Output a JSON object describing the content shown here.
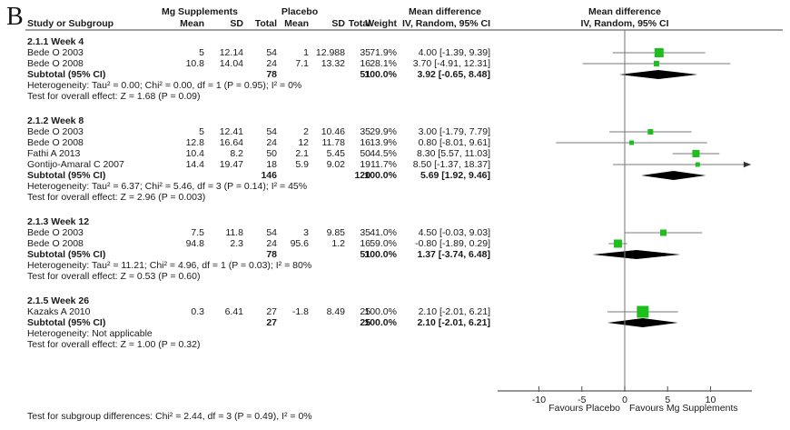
{
  "panel_label": "B",
  "colors": {
    "square": "#1cbf1c",
    "diamond": "#000000",
    "ci_line": "#7a7a7a",
    "rule": "#808080",
    "axis": "#595959",
    "text": "#1a1a1a"
  },
  "header": {
    "group1": "Mg Supplements",
    "group2": "Placebo",
    "effect_col_title": "Mean difference",
    "effect_col_subtitle": "IV, Random, 95% CI",
    "plot_col_title": "Mean difference",
    "plot_col_subtitle": "IV, Random, 95% CI",
    "columns": {
      "study": "Study or Subgroup",
      "mean": "Mean",
      "sd": "SD",
      "total": "Total",
      "weight": "Weight"
    }
  },
  "subgroups": [
    {
      "title": "2.1.1 Week 4",
      "studies": [
        {
          "name": "Bede O 2003",
          "mean1": "5",
          "sd1": "12.14",
          "total1": "54",
          "mean2": "1",
          "sd2": "12.988",
          "total2": "35",
          "weight": "71.9%",
          "ci_text": "4.00 [-1.39, 9.39]",
          "est": 4.0,
          "lo": -1.39,
          "hi": 9.39,
          "weight_pct": 71.9
        },
        {
          "name": "Bede O 2008",
          "mean1": "10.8",
          "sd1": "14.04",
          "total1": "24",
          "mean2": "7.1",
          "sd2": "13.32",
          "total2": "16",
          "weight": "28.1%",
          "ci_text": "3.70 [-4.91, 12.31]",
          "est": 3.7,
          "lo": -4.91,
          "hi": 12.31,
          "weight_pct": 28.1
        }
      ],
      "subtotal": {
        "label": "Subtotal (95% CI)",
        "total1": "78",
        "total2": "51",
        "weight": "100.0%",
        "ci_text": "3.92 [-0.65, 8.48]",
        "est": 3.92,
        "lo": -0.65,
        "hi": 8.48
      },
      "heterogeneity": "Heterogeneity: Tau² = 0.00; Chi² = 0.00, df = 1 (P = 0.95); I² = 0%",
      "overall_test": "Test for overall effect: Z = 1.68 (P = 0.09)"
    },
    {
      "title": "2.1.2 Week 8",
      "studies": [
        {
          "name": "Bede O 2003",
          "mean1": "5",
          "sd1": "12.41",
          "total1": "54",
          "mean2": "2",
          "sd2": "10.46",
          "total2": "35",
          "weight": "29.9%",
          "ci_text": "3.00 [-1.79, 7.79]",
          "est": 3.0,
          "lo": -1.79,
          "hi": 7.79,
          "weight_pct": 29.9
        },
        {
          "name": "Bede O 2008",
          "mean1": "12.8",
          "sd1": "16.64",
          "total1": "24",
          "mean2": "12",
          "sd2": "11.78",
          "total2": "16",
          "weight": "13.9%",
          "ci_text": "0.80 [-8.01, 9.61]",
          "est": 0.8,
          "lo": -8.01,
          "hi": 9.61,
          "weight_pct": 13.9
        },
        {
          "name": "Fathi A 2013",
          "mean1": "10.4",
          "sd1": "8.2",
          "total1": "50",
          "mean2": "2.1",
          "sd2": "5.45",
          "total2": "50",
          "weight": "44.5%",
          "ci_text": "8.30 [5.57, 11.03]",
          "est": 8.3,
          "lo": 5.57,
          "hi": 11.03,
          "weight_pct": 44.5
        },
        {
          "name": "Gontijo-Amaral C 2007",
          "mean1": "14.4",
          "sd1": "19.47",
          "total1": "18",
          "mean2": "5.9",
          "sd2": "9.02",
          "total2": "19",
          "weight": "11.7%",
          "ci_text": "8.50 [-1.37, 18.37]",
          "est": 8.5,
          "lo": -1.37,
          "hi": 18.37,
          "weight_pct": 11.7
        }
      ],
      "subtotal": {
        "label": "Subtotal (95% CI)",
        "total1": "146",
        "total2": "120",
        "weight": "100.0%",
        "ci_text": "5.69 [1.92, 9.46]",
        "est": 5.69,
        "lo": 1.92,
        "hi": 9.46
      },
      "heterogeneity": "Heterogeneity: Tau² = 6.37; Chi² = 5.46, df = 3 (P = 0.14); I² = 45%",
      "overall_test": "Test for overall effect: Z = 2.96 (P = 0.003)"
    },
    {
      "title": "2.1.3 Week 12",
      "studies": [
        {
          "name": "Bede O 2003",
          "mean1": "7.5",
          "sd1": "11.8",
          "total1": "54",
          "mean2": "3",
          "sd2": "9.85",
          "total2": "35",
          "weight": "41.0%",
          "ci_text": "4.50 [-0.03, 9.03]",
          "est": 4.5,
          "lo": -0.03,
          "hi": 9.03,
          "weight_pct": 41.0
        },
        {
          "name": "Bede O 2008",
          "mean1": "94.8",
          "sd1": "2.3",
          "total1": "24",
          "mean2": "95.6",
          "sd2": "1.2",
          "total2": "16",
          "weight": "59.0%",
          "ci_text": "-0.80 [-1.89, 0.29]",
          "est": -0.8,
          "lo": -1.89,
          "hi": 0.29,
          "weight_pct": 59.0
        }
      ],
      "subtotal": {
        "label": "Subtotal (95% CI)",
        "total1": "78",
        "total2": "51",
        "weight": "100.0%",
        "ci_text": "1.37 [-3.74, 6.48]",
        "est": 1.37,
        "lo": -3.74,
        "hi": 6.48
      },
      "heterogeneity": "Heterogeneity: Tau² = 11.21; Chi² = 4.96, df = 1 (P = 0.03); I² = 80%",
      "overall_test": "Test for overall effect: Z = 0.53 (P = 0.60)"
    },
    {
      "title": "2.1.5 Week 26",
      "studies": [
        {
          "name": "Kazaks A 2010",
          "mean1": "0.3",
          "sd1": "6.41",
          "total1": "27",
          "mean2": "-1.8",
          "sd2": "8.49",
          "total2": "25",
          "weight": "100.0%",
          "ci_text": "2.10 [-2.01, 6.21]",
          "est": 2.1,
          "lo": -2.01,
          "hi": 6.21,
          "weight_pct": 100.0
        }
      ],
      "subtotal": {
        "label": "Subtotal (95% CI)",
        "total1": "27",
        "total2": "25",
        "weight": "100.0%",
        "ci_text": "2.10 [-2.01, 6.21]",
        "est": 2.1,
        "lo": -2.01,
        "hi": 6.21
      },
      "heterogeneity": "Heterogeneity: Not applicable",
      "overall_test": "Test for overall effect: Z = 1.00 (P = 0.32)"
    }
  ],
  "axis": {
    "ticks": [
      -10,
      -5,
      0,
      5,
      10
    ],
    "min": -14.7,
    "max": 14.7,
    "favours_left": "Favours Placebo",
    "favours_right": "Favours Mg Supplements"
  },
  "footer": "Test for subgroup differences: Chi² = 2.44, df = 3 (P = 0.49), I² = 0%",
  "chart_data": {
    "type": "forest",
    "effect_measure": "Mean difference, IV, Random, 95% CI",
    "axis_ticks": [
      -10,
      -5,
      0,
      5,
      10
    ],
    "axis_range": [
      -14.7,
      14.7
    ],
    "xlabel_left": "Favours Placebo",
    "xlabel_right": "Favours Mg Supplements",
    "subgroups": [
      {
        "name": "2.1.1 Week 4",
        "studies": [
          {
            "study": "Bede O 2003",
            "est": 4.0,
            "ci": [
              -1.39,
              9.39
            ],
            "weight_pct": 71.9
          },
          {
            "study": "Bede O 2008",
            "est": 3.7,
            "ci": [
              -4.91,
              12.31
            ],
            "weight_pct": 28.1
          }
        ],
        "subtotal": {
          "est": 3.92,
          "ci": [
            -0.65,
            8.48
          ]
        }
      },
      {
        "name": "2.1.2 Week 8",
        "studies": [
          {
            "study": "Bede O 2003",
            "est": 3.0,
            "ci": [
              -1.79,
              7.79
            ],
            "weight_pct": 29.9
          },
          {
            "study": "Bede O 2008",
            "est": 0.8,
            "ci": [
              -8.01,
              9.61
            ],
            "weight_pct": 13.9
          },
          {
            "study": "Fathi A 2013",
            "est": 8.3,
            "ci": [
              5.57,
              11.03
            ],
            "weight_pct": 44.5
          },
          {
            "study": "Gontijo-Amaral C 2007",
            "est": 8.5,
            "ci": [
              -1.37,
              18.37
            ],
            "weight_pct": 11.7
          }
        ],
        "subtotal": {
          "est": 5.69,
          "ci": [
            1.92,
            9.46
          ]
        }
      },
      {
        "name": "2.1.3 Week 12",
        "studies": [
          {
            "study": "Bede O 2003",
            "est": 4.5,
            "ci": [
              -0.03,
              9.03
            ],
            "weight_pct": 41.0
          },
          {
            "study": "Bede O 2008",
            "est": -0.8,
            "ci": [
              -1.89,
              0.29
            ],
            "weight_pct": 59.0
          }
        ],
        "subtotal": {
          "est": 1.37,
          "ci": [
            -3.74,
            6.48
          ]
        }
      },
      {
        "name": "2.1.5 Week 26",
        "studies": [
          {
            "study": "Kazaks A 2010",
            "est": 2.1,
            "ci": [
              -2.01,
              6.21
            ],
            "weight_pct": 100.0
          }
        ],
        "subtotal": {
          "est": 2.1,
          "ci": [
            -2.01,
            6.21
          ]
        }
      }
    ]
  }
}
